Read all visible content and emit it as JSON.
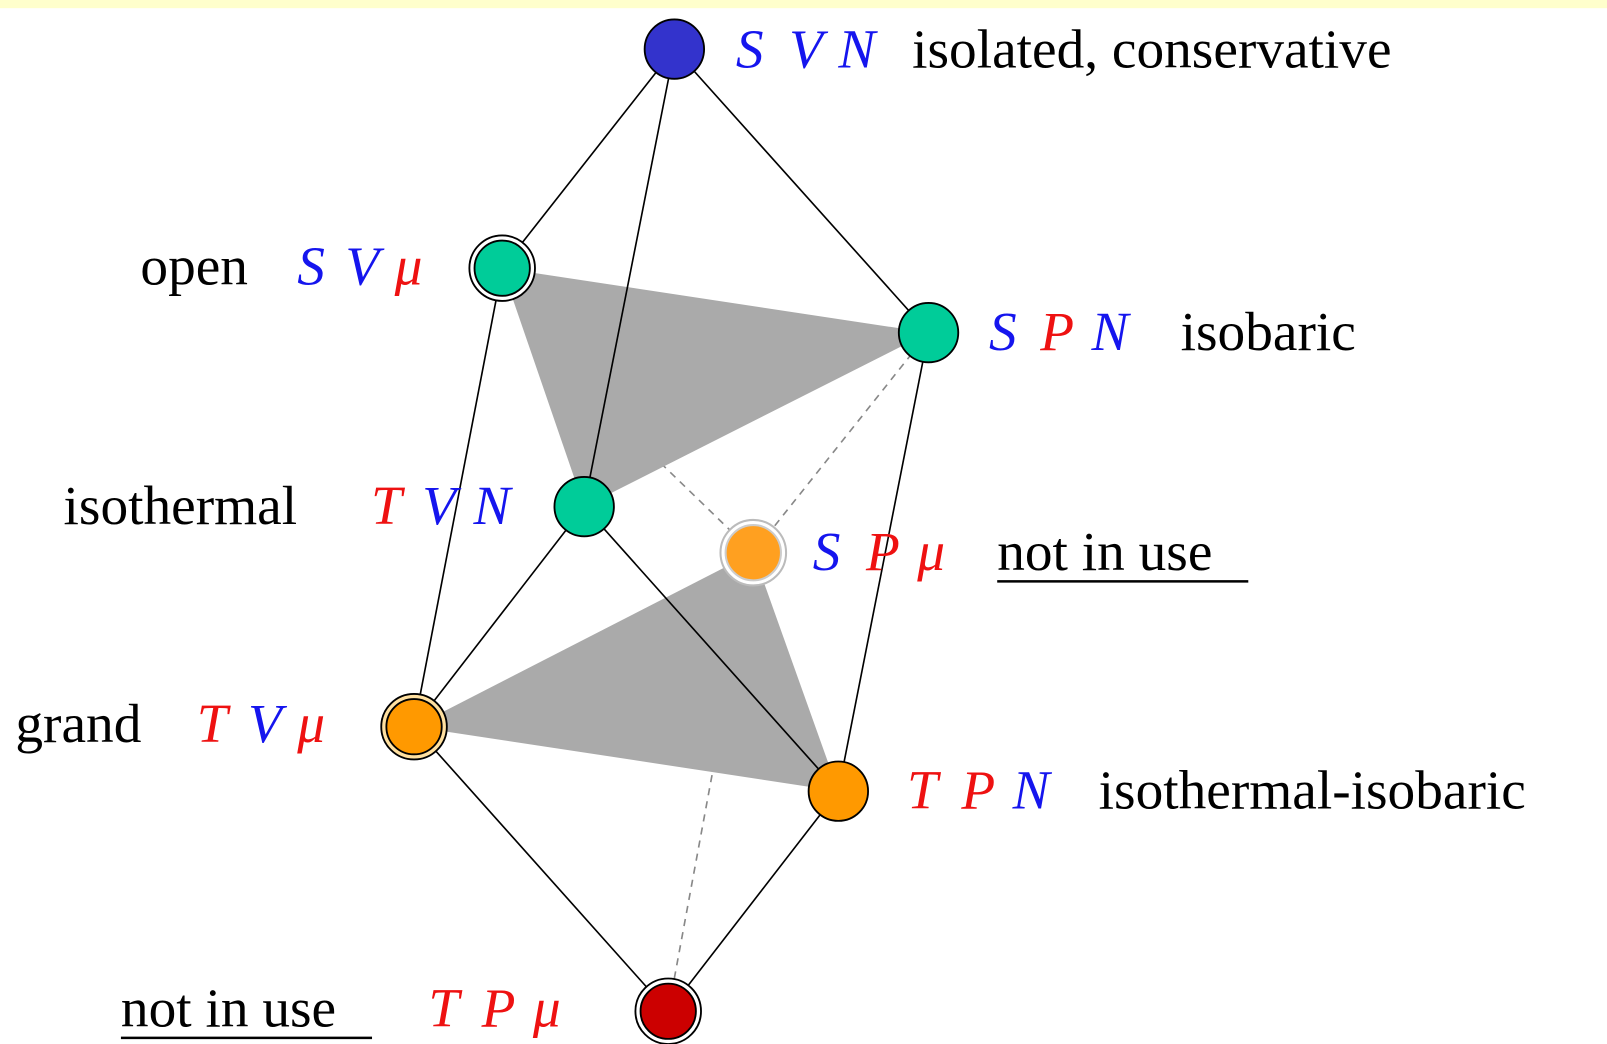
{
  "nodes": [
    {
      "vars": [
        "S",
        "V",
        "N"
      ],
      "label": "isolated, conservative"
    },
    {
      "vars": [
        "S",
        "V",
        "μ"
      ],
      "label": "open"
    },
    {
      "vars": [
        "S",
        "P",
        "N"
      ],
      "label": "isobaric"
    },
    {
      "vars": [
        "T",
        "V",
        "N"
      ],
      "label": "isothermal"
    },
    {
      "vars": [
        "S",
        "P",
        "μ"
      ],
      "label": "not in use"
    },
    {
      "vars": [
        "T",
        "V",
        "μ"
      ],
      "label": "grand"
    },
    {
      "vars": [
        "T",
        "P",
        "N"
      ],
      "label": "isothermal-isobaric"
    },
    {
      "vars": [
        "T",
        "P",
        "μ"
      ],
      "label": "not in use"
    }
  ]
}
